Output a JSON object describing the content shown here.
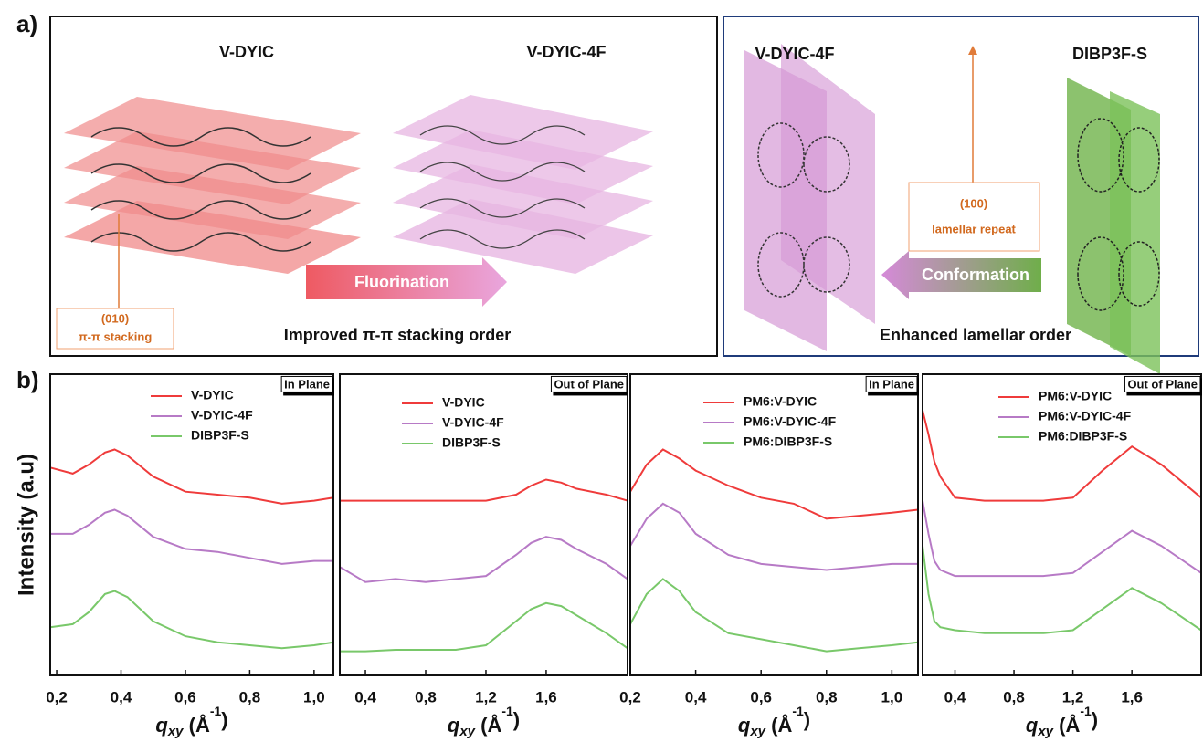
{
  "figure": {
    "panel_a_label": "a)",
    "panel_b_label": "b)",
    "left_box": {
      "left_title": "V-DYIC",
      "right_title": "V-DYIC-4F",
      "arrow": "Fluorination",
      "peak": "(010)",
      "peak_desc": "π-π stacking",
      "caption": "Improved π-π stacking order"
    },
    "right_box": {
      "left_title": "V-DYIC-4F",
      "right_title": "DIBP3F-S",
      "arrow": "Conformation",
      "peak": "(100)",
      "peak_desc": "lamellar repeat",
      "caption": "Enhanced lamellar order"
    },
    "y_label": "Intensity (a.u)"
  },
  "chart_data": [
    {
      "type": "line",
      "corner_label": "In Plane",
      "x_label": [
        "q",
        "xy",
        " (Å",
        "-1",
        ")"
      ],
      "x": [
        0.18,
        0.25,
        0.3,
        0.35,
        0.38,
        0.42,
        0.5,
        0.6,
        0.7,
        0.8,
        0.9,
        1.0,
        1.06
      ],
      "series": [
        {
          "name": "V-DYIC",
          "color": "#ef3b3b",
          "values": [
            69,
            67,
            70,
            74,
            75,
            73,
            66,
            61,
            60,
            59,
            57,
            58,
            59
          ]
        },
        {
          "name": "V-DYIC-4F",
          "color": "#b77ac6",
          "values": [
            47,
            47,
            50,
            54,
            55,
            53,
            46,
            42,
            41,
            39,
            37,
            38,
            38
          ]
        },
        {
          "name": "DIBP3F-S",
          "color": "#79c86a",
          "values": [
            16,
            17,
            21,
            27,
            28,
            26,
            18,
            13,
            11,
            10,
            9,
            10,
            11
          ]
        }
      ],
      "xlim": [
        0.18,
        1.06
      ],
      "ylim": [
        0,
        100
      ],
      "xticks": [
        {
          "value": 0.2,
          "label": "0,2"
        },
        {
          "value": 0.4,
          "label": "0,4"
        },
        {
          "value": 0.6,
          "label": "0,6"
        },
        {
          "value": 0.8,
          "label": "0,8"
        },
        {
          "value": 1.0,
          "label": "1,0"
        }
      ]
    },
    {
      "type": "line",
      "corner_label": "Out of Plane",
      "x_label": [
        "q",
        "xy",
        " (Å",
        "-1",
        ")"
      ],
      "x": [
        0.23,
        0.4,
        0.6,
        0.8,
        1.0,
        1.2,
        1.4,
        1.5,
        1.6,
        1.7,
        1.8,
        2.0,
        2.14
      ],
      "series": [
        {
          "name": "V-DYIC",
          "color": "#ef3b3b",
          "values": [
            58,
            58,
            58,
            58,
            58,
            58,
            60,
            63,
            65,
            64,
            62,
            60,
            58
          ]
        },
        {
          "name": "V-DYIC-4F",
          "color": "#b77ac6",
          "values": [
            36,
            31,
            32,
            31,
            32,
            33,
            40,
            44,
            46,
            45,
            42,
            37,
            32
          ]
        },
        {
          "name": "DIBP3F-S",
          "color": "#79c86a",
          "values": [
            8,
            8,
            8.5,
            8.5,
            8.5,
            10,
            18,
            22,
            24,
            23,
            20,
            14,
            9
          ]
        }
      ],
      "xlim": [
        0.23,
        2.14
      ],
      "ylim": [
        0,
        100
      ],
      "xticks": [
        {
          "value": 0.4,
          "label": "0,4"
        },
        {
          "value": 0.8,
          "label": "0,8"
        },
        {
          "value": 1.2,
          "label": "1,2"
        },
        {
          "value": 1.6,
          "label": "1,6"
        }
      ]
    },
    {
      "type": "line",
      "corner_label": "In Plane",
      "x_label": [
        "q",
        "xy",
        " (Å",
        "-1",
        ")"
      ],
      "x": [
        0.2,
        0.25,
        0.3,
        0.35,
        0.4,
        0.5,
        0.6,
        0.7,
        0.8,
        0.9,
        1.0,
        1.08
      ],
      "series": [
        {
          "name": "PM6:V-DYIC",
          "color": "#ef3b3b",
          "values": [
            61,
            70,
            75,
            72,
            68,
            63,
            59,
            57,
            52,
            53,
            54,
            55
          ]
        },
        {
          "name": "PM6:V-DYIC-4F",
          "color": "#b77ac6",
          "values": [
            43,
            52,
            57,
            54,
            47,
            40,
            37,
            36,
            35,
            36,
            37,
            37
          ]
        },
        {
          "name": "PM6:DIBP3F-S",
          "color": "#79c86a",
          "values": [
            17,
            27,
            32,
            28,
            21,
            14,
            12,
            10,
            8,
            9,
            10,
            11
          ]
        }
      ],
      "xlim": [
        0.2,
        1.08
      ],
      "ylim": [
        0,
        100
      ],
      "xticks": [
        {
          "value": 0.2,
          "label": "0,2"
        },
        {
          "value": 0.4,
          "label": "0,4"
        },
        {
          "value": 0.6,
          "label": "0,6"
        },
        {
          "value": 0.8,
          "label": "0,8"
        },
        {
          "value": 1.0,
          "label": "1,0"
        }
      ]
    },
    {
      "type": "line",
      "corner_label": "Out of Plane",
      "x_label": [
        "q",
        "xy",
        " (Å",
        "-1",
        ")"
      ],
      "x": [
        0.18,
        0.22,
        0.26,
        0.3,
        0.4,
        0.6,
        0.8,
        1.0,
        1.2,
        1.4,
        1.6,
        1.8,
        2.07
      ],
      "series": [
        {
          "name": "PM6:V-DYIC",
          "color": "#ef3b3b",
          "values": [
            88,
            80,
            71,
            66,
            59,
            58,
            58,
            58,
            59,
            68,
            76,
            70,
            59
          ]
        },
        {
          "name": "PM6:V-DYIC-4F",
          "color": "#b77ac6",
          "values": [
            58,
            47,
            38,
            35,
            33,
            33,
            33,
            33,
            34,
            41,
            48,
            43,
            34
          ]
        },
        {
          "name": "PM6:DIBP3F-S",
          "color": "#79c86a",
          "values": [
            43,
            27,
            18,
            16,
            15,
            14,
            14,
            14,
            15,
            22,
            29,
            24,
            15
          ]
        }
      ],
      "xlim": [
        0.18,
        2.07
      ],
      "ylim": [
        0,
        100
      ],
      "xticks": [
        {
          "value": 0.4,
          "label": "0,4"
        },
        {
          "value": 0.8,
          "label": "0,8"
        },
        {
          "value": 1.2,
          "label": "1,2"
        },
        {
          "value": 1.6,
          "label": "1,6"
        }
      ]
    }
  ]
}
